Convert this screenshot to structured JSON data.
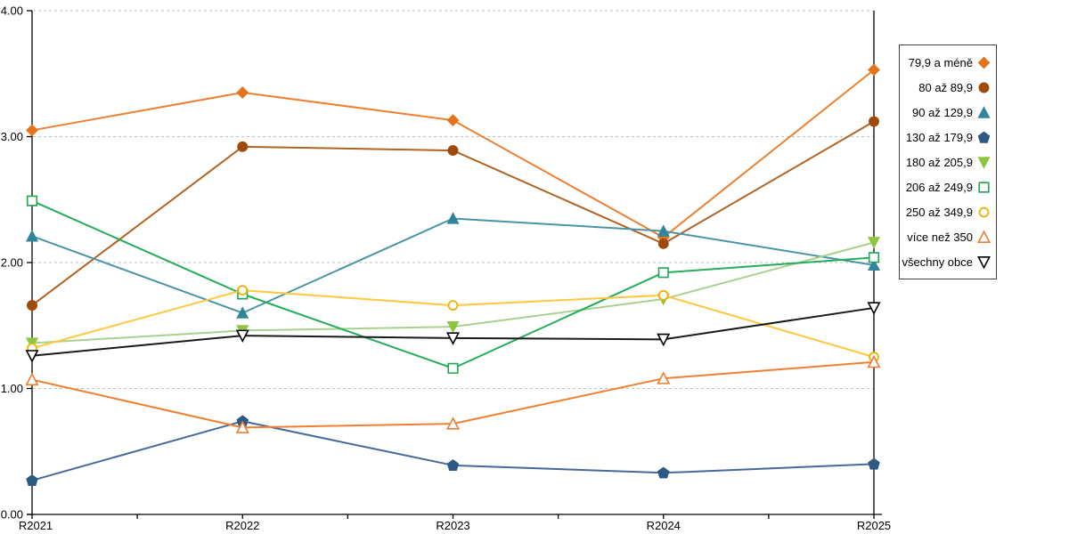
{
  "chart_data": {
    "type": "line",
    "title": "",
    "xlabel": "",
    "ylabel": "",
    "categories": [
      "R2021",
      "R2022",
      "R2023",
      "R2024",
      "R2025"
    ],
    "ylim": [
      0,
      4
    ],
    "ytick_labels": [
      "0.00",
      "1.00",
      "2.00",
      "3.00",
      "4.00"
    ],
    "ytick_values": [
      0,
      1,
      2,
      3,
      4
    ],
    "grid": "horizontal-dashed",
    "gridline_color": "#BFBFBF",
    "axis_color": "#000000",
    "legend_position": "right-outside",
    "series": [
      {
        "name": "79,9 a méně",
        "marker": "diamond",
        "filled": true,
        "line_color": "#ED8032",
        "marker_color": "#E6731A",
        "values": [
          3.05,
          3.35,
          3.13,
          2.2,
          3.53
        ]
      },
      {
        "name": "80 až 89,9",
        "marker": "circle",
        "filled": true,
        "line_color": "#B06423",
        "marker_color": "#A04A0A",
        "values": [
          1.66,
          2.92,
          2.89,
          2.15,
          3.12
        ]
      },
      {
        "name": "90 až 129,9",
        "marker": "triangle-up",
        "filled": true,
        "line_color": "#4A93A8",
        "marker_color": "#31849B",
        "values": [
          2.21,
          1.6,
          2.35,
          2.25,
          1.98
        ]
      },
      {
        "name": "130 až 179,9",
        "marker": "pentagon",
        "filled": true,
        "line_color": "#46699C",
        "marker_color": "#2D5985",
        "values": [
          0.27,
          0.74,
          0.39,
          0.33,
          0.4
        ]
      },
      {
        "name": "180 až 205,9",
        "marker": "triangle-down",
        "filled": true,
        "line_color": "#A9D18E",
        "marker_color": "#8DC63F",
        "values": [
          1.36,
          1.46,
          1.49,
          1.71,
          2.16
        ]
      },
      {
        "name": "206 až 249,9",
        "marker": "square",
        "filled": false,
        "line_color": "#24AE59",
        "marker_color": "#1EA653",
        "values": [
          2.49,
          1.75,
          1.16,
          1.92,
          2.04
        ]
      },
      {
        "name": "250 až 349,9",
        "marker": "circle",
        "filled": false,
        "line_color": "#FFC83D",
        "marker_color": "#EFB000",
        "values": [
          1.32,
          1.78,
          1.66,
          1.74,
          1.25
        ]
      },
      {
        "name": "více než 350",
        "marker": "triangle-up",
        "filled": false,
        "line_color": "#F08030",
        "marker_color": "#ED7D31",
        "values": [
          1.07,
          0.69,
          0.72,
          1.08,
          1.21
        ]
      },
      {
        "name": "všechny obce",
        "marker": "triangle-down",
        "filled": false,
        "line_color": "#1A1A1A",
        "marker_color": "#000000",
        "values": [
          1.26,
          1.42,
          1.4,
          1.39,
          1.64
        ]
      }
    ]
  }
}
